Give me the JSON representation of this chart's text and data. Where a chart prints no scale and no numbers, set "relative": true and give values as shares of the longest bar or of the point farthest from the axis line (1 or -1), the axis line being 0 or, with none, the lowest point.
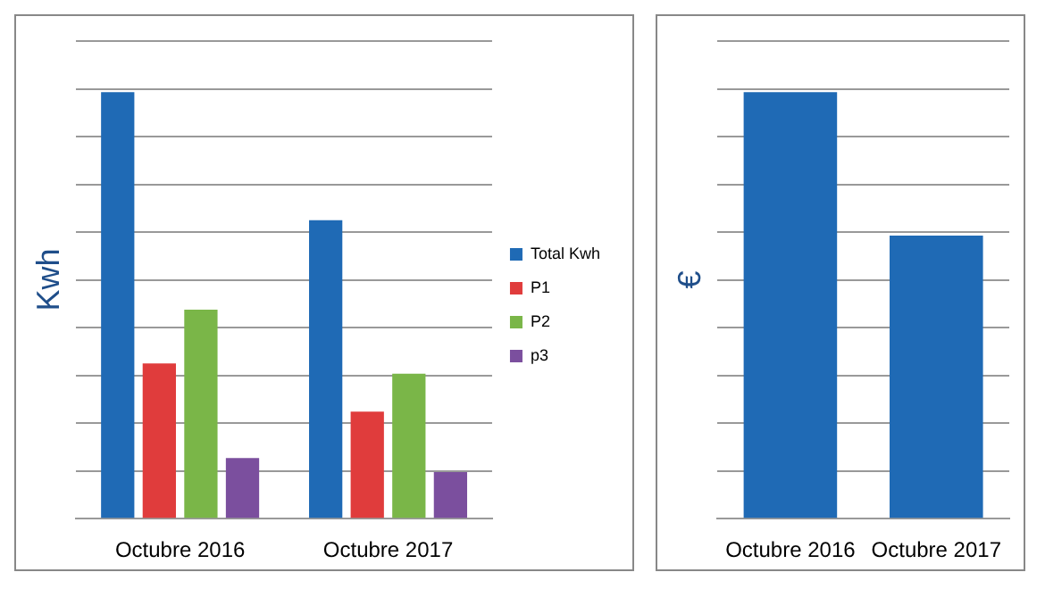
{
  "chart_data": [
    {
      "type": "bar",
      "ylabel": "Kwh",
      "categories": [
        "Octubre 2016",
        "Octubre 2017"
      ],
      "relative": true,
      "grid": "y",
      "legend": "right",
      "series": [
        {
          "name": "Total Kwh",
          "color": "#1f6ab5",
          "values": [
            1,
            0.7
          ]
        },
        {
          "name": "P1",
          "color": "#e03c3c",
          "values": [
            0.364,
            0.251
          ]
        },
        {
          "name": "P2",
          "color": "#7ab648",
          "values": [
            0.49,
            0.34
          ]
        },
        {
          "name": "p3",
          "color": "#7b4f9e",
          "values": [
            0.142,
            0.109
          ]
        }
      ]
    },
    {
      "type": "bar",
      "ylabel": "€",
      "categories": [
        "Octubre 2016",
        "Octubre 2017"
      ],
      "relative": true,
      "grid": "y",
      "series": [
        {
          "color": "#1f6ab5",
          "values": [
            1,
            0.664
          ]
        }
      ]
    }
  ]
}
